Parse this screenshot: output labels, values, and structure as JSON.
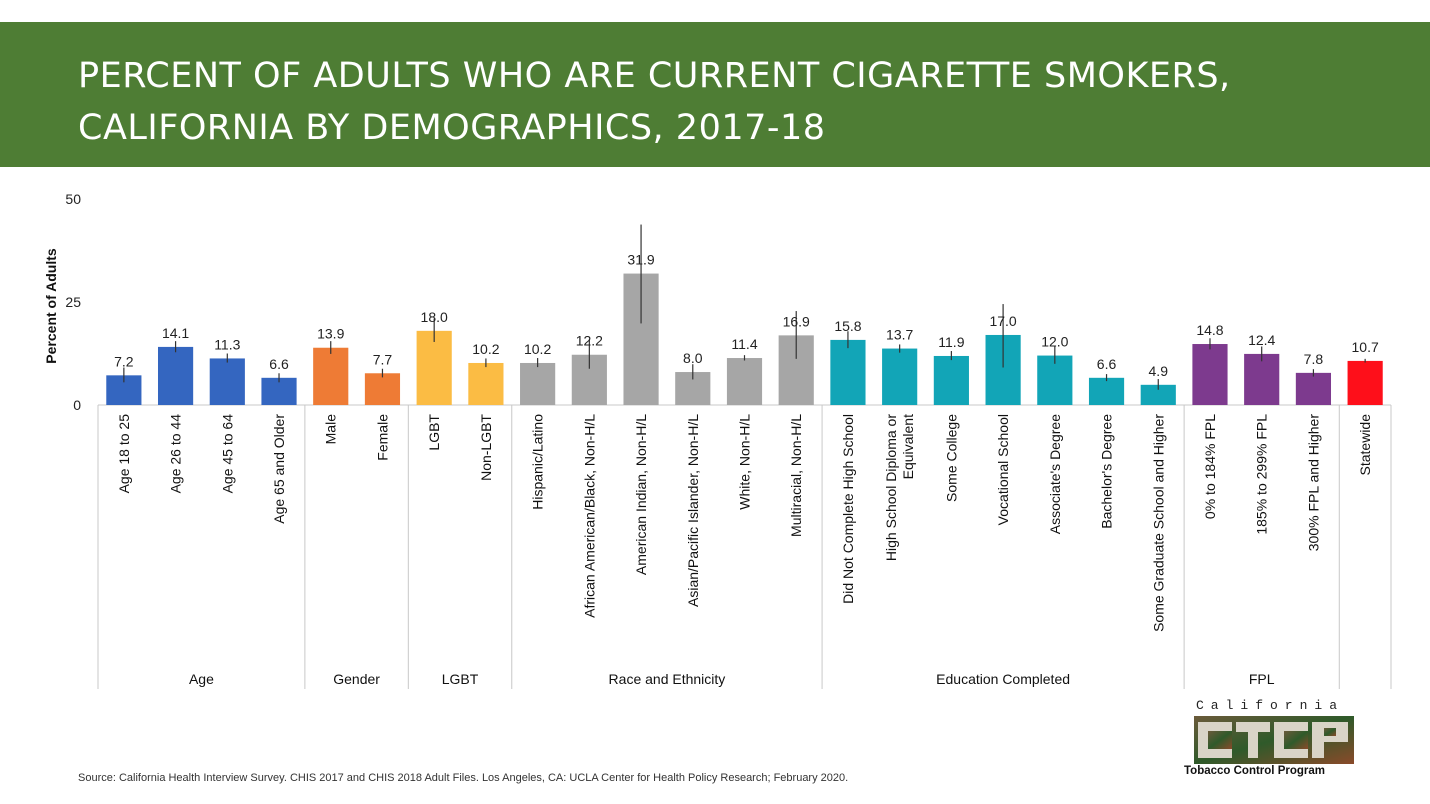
{
  "header": {
    "title_line1": "PERCENT OF ADULTS WHO ARE CURRENT CIGARETTE SMOKERS,",
    "title_line2": "CALIFORNIA BY DEMOGRAPHICS, 2017-18"
  },
  "chart_data": {
    "type": "bar",
    "ylabel": "Percent of Adults",
    "ylim": [
      0,
      50
    ],
    "yticks": [
      0,
      25,
      50
    ],
    "grid": false,
    "categories": [
      "Age 18 to 25",
      "Age 26 to 44",
      "Age 45 to 64",
      "Age 65 and Older",
      "Male",
      "Female",
      "LGBT",
      "Non-LGBT",
      "Hispanic/Latino",
      "African American/Black, Non-H/L",
      "American Indian, Non-H/L",
      "Asian/Pacific Islander, Non-H/L",
      "White, Non-H/L",
      "Multiracial, Non-H/L",
      "Did Not Complete High School",
      "High School Diploma or Equivalent",
      "Some College",
      "Vocational School",
      "Associate's Degree",
      "Bachelor's Degree",
      "Some Graduate School and Higher",
      "0% to 184% FPL",
      "185% to 299% FPL",
      "300% FPL and Higher",
      "Statewide"
    ],
    "values": [
      7.2,
      14.1,
      11.3,
      6.6,
      13.9,
      7.7,
      18.0,
      10.2,
      10.2,
      12.2,
      31.9,
      8.0,
      11.4,
      16.9,
      15.8,
      13.7,
      11.9,
      17.0,
      12.0,
      6.6,
      4.9,
      14.8,
      12.4,
      7.8,
      10.7
    ],
    "value_labels": [
      "7.2",
      "14.1",
      "11.3",
      "6.6",
      "13.9",
      "7.7",
      "18.0",
      "10.2",
      "10.2",
      "12.2",
      "31.9",
      "8.0",
      "11.4",
      "16.9",
      "15.8",
      "13.7",
      "11.9",
      "17.0",
      "12.0",
      "6.6",
      "4.9",
      "14.8",
      "12.4",
      "7.8",
      "10.7"
    ],
    "error_low": [
      5.5,
      12.8,
      10.3,
      5.5,
      12.4,
      6.7,
      15.3,
      9.2,
      9.2,
      8.8,
      19.8,
      6.2,
      10.8,
      11.2,
      13.8,
      12.7,
      10.9,
      9.1,
      10.0,
      5.8,
      3.7,
      13.5,
      10.6,
      6.9,
      10.3
    ],
    "error_high": [
      9.1,
      15.5,
      12.5,
      7.7,
      15.5,
      8.8,
      21.0,
      11.3,
      11.4,
      15.9,
      43.8,
      9.9,
      12.1,
      22.8,
      17.9,
      14.7,
      13.1,
      24.5,
      14.3,
      7.5,
      6.3,
      16.2,
      14.2,
      8.7,
      11.2
    ],
    "groups": [
      {
        "name": "Age",
        "count": 4,
        "color": "#3466c0"
      },
      {
        "name": "Gender",
        "count": 2,
        "color": "#ee7b35"
      },
      {
        "name": "LGBT",
        "count": 2,
        "color": "#fbbc44"
      },
      {
        "name": "Race and Ethnicity",
        "count": 6,
        "color": "#a6a6a6"
      },
      {
        "name": "Education Completed",
        "count": 7,
        "color": "#12a5b7"
      },
      {
        "name": "FPL",
        "count": 3,
        "color": "#7d3a8e"
      },
      {
        "name": "",
        "count": 1,
        "color": "#fe0f1a"
      }
    ]
  },
  "source_text": "Source: California Health Interview Survey. CHIS 2017 and CHIS 2018 Adult Files. Los Angeles, CA: UCLA Center for Health Policy Research; February 2020.",
  "logo": {
    "top_text": "California",
    "word": "CTCP",
    "bottom_text": "Tobacco Control Program"
  }
}
